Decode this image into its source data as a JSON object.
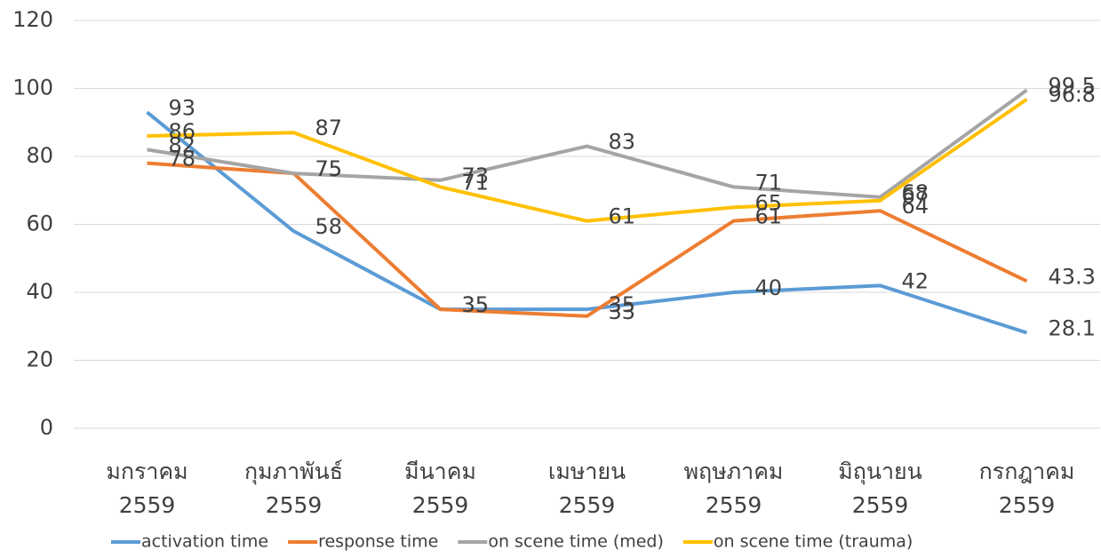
{
  "chart_data": {
    "type": "line",
    "categories": [
      "มกราคม\n2559",
      "กุมภาพันธ์\n2559",
      "มีนาคม\n2559",
      "เมษายน\n2559",
      "พฤษภาคม\n2559",
      "มิถุนายน\n2559",
      "กรกฎาคม\n2559"
    ],
    "series": [
      {
        "name": "activation time",
        "color": "#5b9bd5",
        "values": [
          93,
          58,
          35,
          35,
          40,
          42,
          28.1
        ]
      },
      {
        "name": "response time",
        "color": "#ed7d31",
        "values": [
          78,
          75,
          35,
          33,
          61,
          64,
          43.3
        ]
      },
      {
        "name": "on scene time (med)",
        "color": "#a5a5a5",
        "values": [
          82,
          75,
          73,
          83,
          71,
          68,
          99.5
        ]
      },
      {
        "name": "on scene time (trauma)",
        "color": "#ffc000",
        "values": [
          86,
          87,
          71,
          61,
          65,
          67,
          96.8
        ]
      }
    ],
    "ylim": [
      0,
      120
    ],
    "yticks": [
      0,
      20,
      40,
      60,
      80,
      100,
      120
    ],
    "grid": true,
    "legend": "bottom"
  }
}
